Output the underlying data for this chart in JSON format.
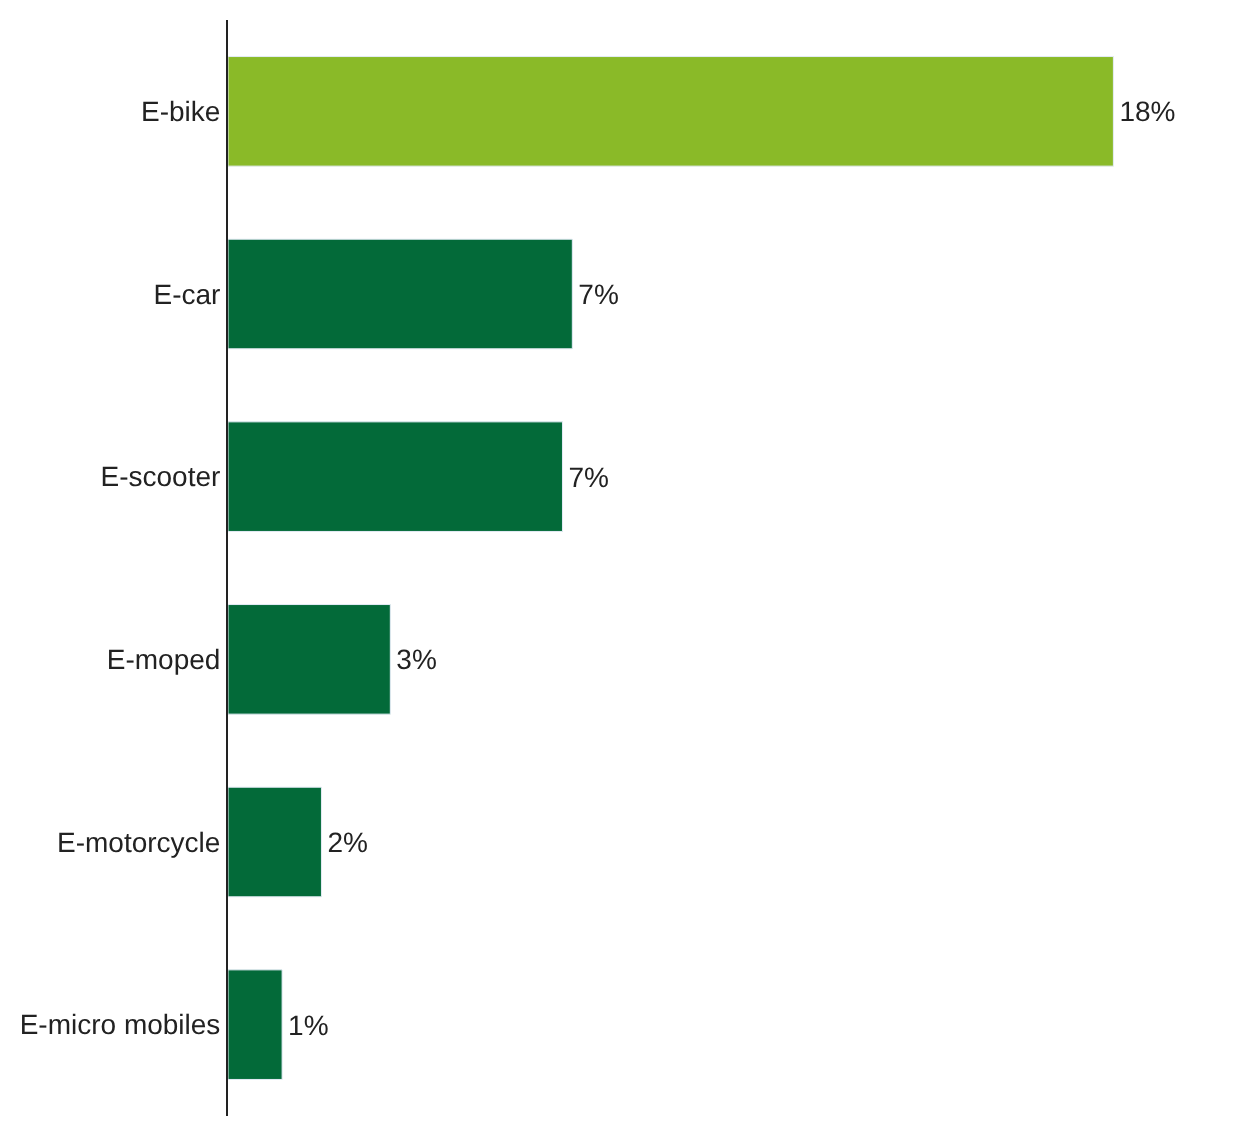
{
  "chart_data": {
    "type": "bar",
    "orientation": "horizontal",
    "categories": [
      "E-bike",
      "E-car",
      "E-scooter",
      "E-moped",
      "E-motorcycle",
      "E-micro mobiles"
    ],
    "values": [
      18,
      7.0,
      6.8,
      3.3,
      1.9,
      1.1
    ],
    "value_labels": [
      "18%",
      "7%",
      "7%",
      "3%",
      "2%",
      "1%"
    ],
    "colors": [
      "#8aba28",
      "#036a39",
      "#036a39",
      "#036a39",
      "#036a39",
      "#036a39"
    ],
    "tick_labels": "y",
    "legend": false
  }
}
